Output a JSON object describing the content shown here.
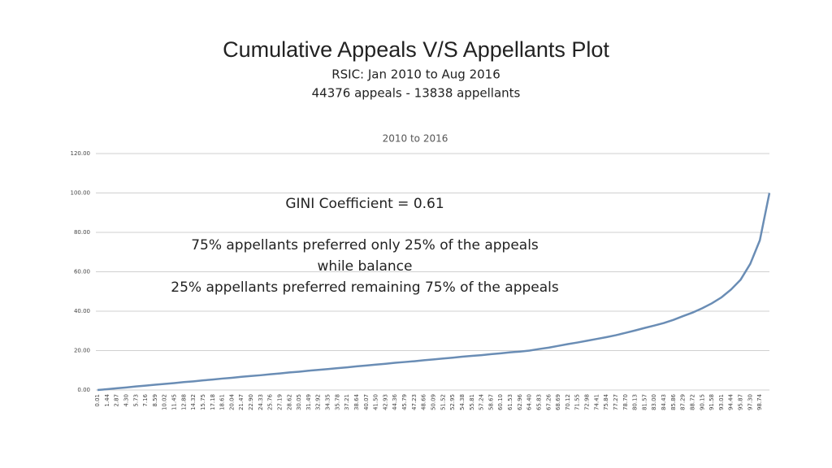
{
  "slide": {
    "title": "Cumulative Appeals V/S Appellants Plot",
    "subtitle_lines": [
      "RSIC: Jan 2010 to Aug 2016",
      "44376 appeals - 13838 appellants"
    ]
  },
  "chart_data": {
    "type": "line",
    "title": "2010 to 2016",
    "annotations": [
      "GINI Coefficient = 0.61",
      "75% appellants preferred only 25% of the appeals",
      "while balance",
      "25% appellants preferred remaining 75% of the appeals"
    ],
    "categories": [
      "0.01",
      "1.44",
      "2.87",
      "4.30",
      "5.73",
      "7.16",
      "8.59",
      "10.02",
      "11.45",
      "12.88",
      "14.32",
      "15.75",
      "17.18",
      "18.61",
      "20.04",
      "21.47",
      "22.90",
      "24.33",
      "25.76",
      "27.19",
      "28.62",
      "30.05",
      "31.49",
      "32.92",
      "34.35",
      "35.78",
      "37.21",
      "38.64",
      "40.07",
      "41.50",
      "42.93",
      "44.36",
      "45.79",
      "47.23",
      "48.66",
      "50.09",
      "51.52",
      "52.95",
      "54.38",
      "55.81",
      "57.24",
      "58.67",
      "60.10",
      "61.53",
      "62.96",
      "64.40",
      "65.83",
      "67.26",
      "68.69",
      "70.12",
      "71.55",
      "72.98",
      "74.41",
      "75.84",
      "77.27",
      "78.70",
      "80.13",
      "81.57",
      "83.00",
      "84.43",
      "85.86",
      "87.29",
      "88.72",
      "90.15",
      "91.58",
      "93.01",
      "94.44",
      "95.87",
      "97.30",
      "98.74",
      null
    ],
    "values": [
      0.0,
      0.4,
      0.9,
      1.3,
      1.8,
      2.2,
      2.7,
      3.1,
      3.5,
      4.0,
      4.4,
      4.9,
      5.3,
      5.8,
      6.2,
      6.7,
      7.1,
      7.5,
      8.0,
      8.4,
      8.9,
      9.3,
      9.8,
      10.2,
      10.6,
      11.1,
      11.5,
      12.0,
      12.4,
      12.9,
      13.3,
      13.8,
      14.2,
      14.6,
      15.1,
      15.5,
      16.0,
      16.4,
      16.9,
      17.3,
      17.7,
      18.2,
      18.6,
      19.1,
      19.5,
      20.0,
      20.8,
      21.5,
      22.4,
      23.3,
      24.1,
      25.0,
      25.9,
      26.8,
      27.8,
      29.0,
      30.2,
      31.5,
      32.7,
      34.0,
      35.6,
      37.5,
      39.3,
      41.5,
      44.0,
      47.0,
      51.0,
      56.0,
      64.0,
      76.0,
      100.0
    ],
    "color": "#6a8db5",
    "ylim": [
      0,
      120
    ],
    "yticks": [
      {
        "value": 0,
        "label": "0.00"
      },
      {
        "value": 20,
        "label": "20.00"
      },
      {
        "value": 40,
        "label": "40.00"
      },
      {
        "value": 60,
        "label": "60.00"
      },
      {
        "value": 80,
        "label": "80.00"
      },
      {
        "value": 100,
        "label": "100.00"
      },
      {
        "value": 120,
        "label": "120.00"
      }
    ],
    "grid": true
  }
}
